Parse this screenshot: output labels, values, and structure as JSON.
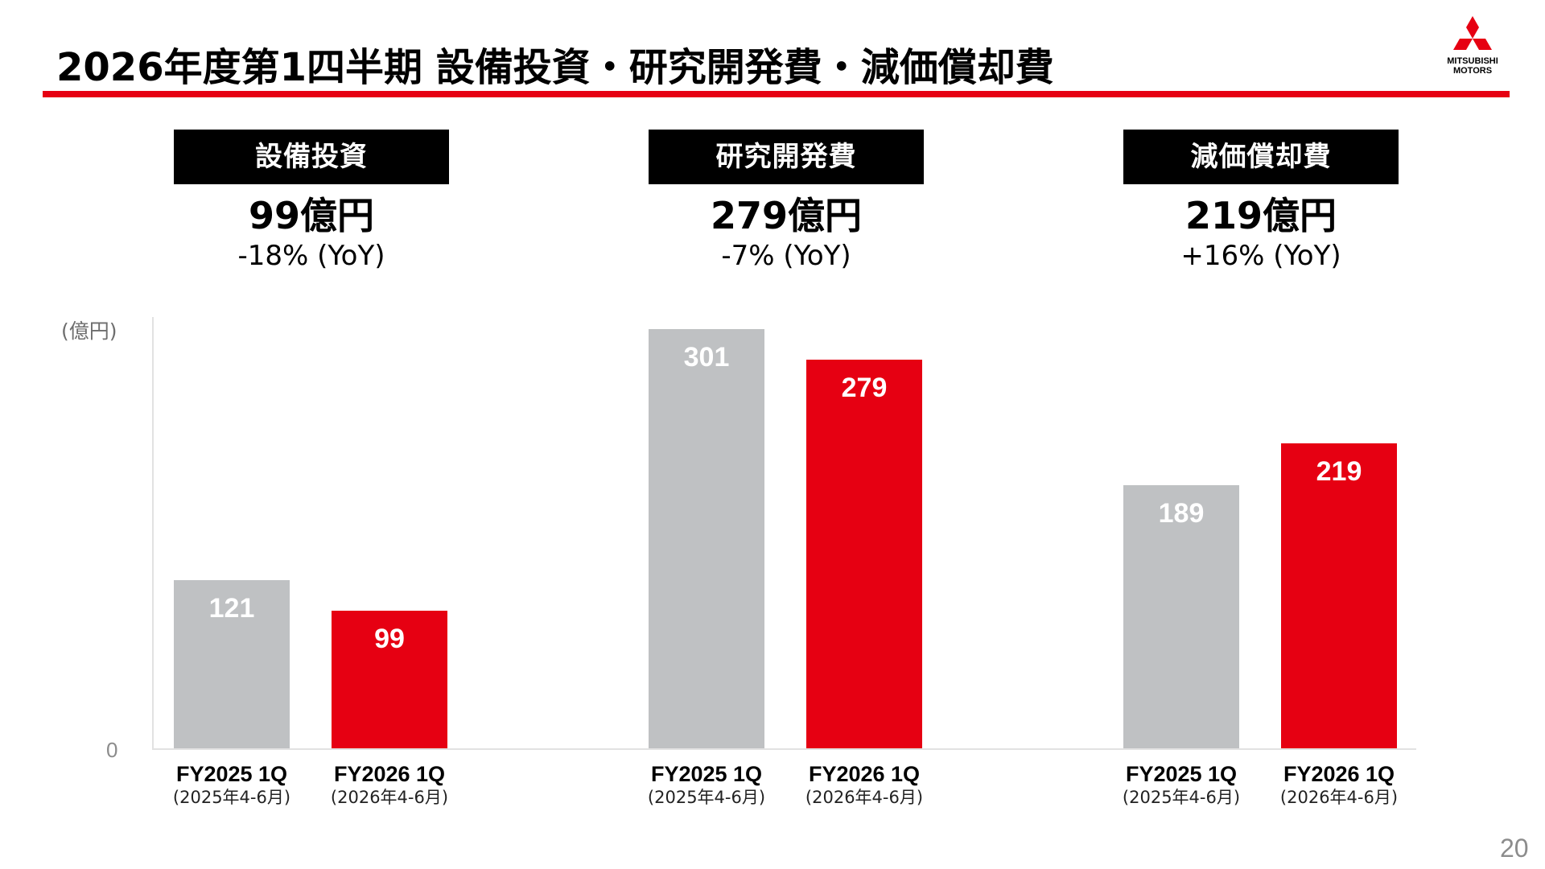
{
  "header": {
    "title": "2026年度第1四半期 設備投資・研究開発費・減価償却費",
    "logo_text_line1": "MITSUBISHI",
    "logo_text_line2": "MOTORS",
    "accent_color": "#e60012"
  },
  "page_number": "20",
  "chart_data": {
    "type": "bar",
    "unit_label": "(億円)",
    "zero_label": "0",
    "ylim": [
      0,
      301
    ],
    "grid": false,
    "legend": "none",
    "colors": {
      "FY2025 1Q": "#bfc1c3",
      "FY2026 1Q": "#e60012"
    },
    "groups": [
      {
        "label": "設備投資",
        "amount": "99億円",
        "yoy": "-18% (YoY)",
        "bars": [
          {
            "category": "FY2025 1Q",
            "period": "(2025年4-6月)",
            "value": 121,
            "label": "121"
          },
          {
            "category": "FY2026 1Q",
            "period": "(2026年4-6月)",
            "value": 99,
            "label": "99"
          }
        ]
      },
      {
        "label": "研究開発費",
        "amount": "279億円",
        "yoy": "-7% (YoY)",
        "bars": [
          {
            "category": "FY2025 1Q",
            "period": "(2025年4-6月)",
            "value": 301,
            "label": "301"
          },
          {
            "category": "FY2026 1Q",
            "period": "(2026年4-6月)",
            "value": 279,
            "label": "279"
          }
        ]
      },
      {
        "label": "減価償却費",
        "amount": "219億円",
        "yoy": "+16% (YoY)",
        "bars": [
          {
            "category": "FY2025 1Q",
            "period": "(2025年4-6月)",
            "value": 189,
            "label": "189"
          },
          {
            "category": "FY2026 1Q",
            "period": "(2026年4-6月)",
            "value": 219,
            "label": "219"
          }
        ]
      }
    ]
  }
}
